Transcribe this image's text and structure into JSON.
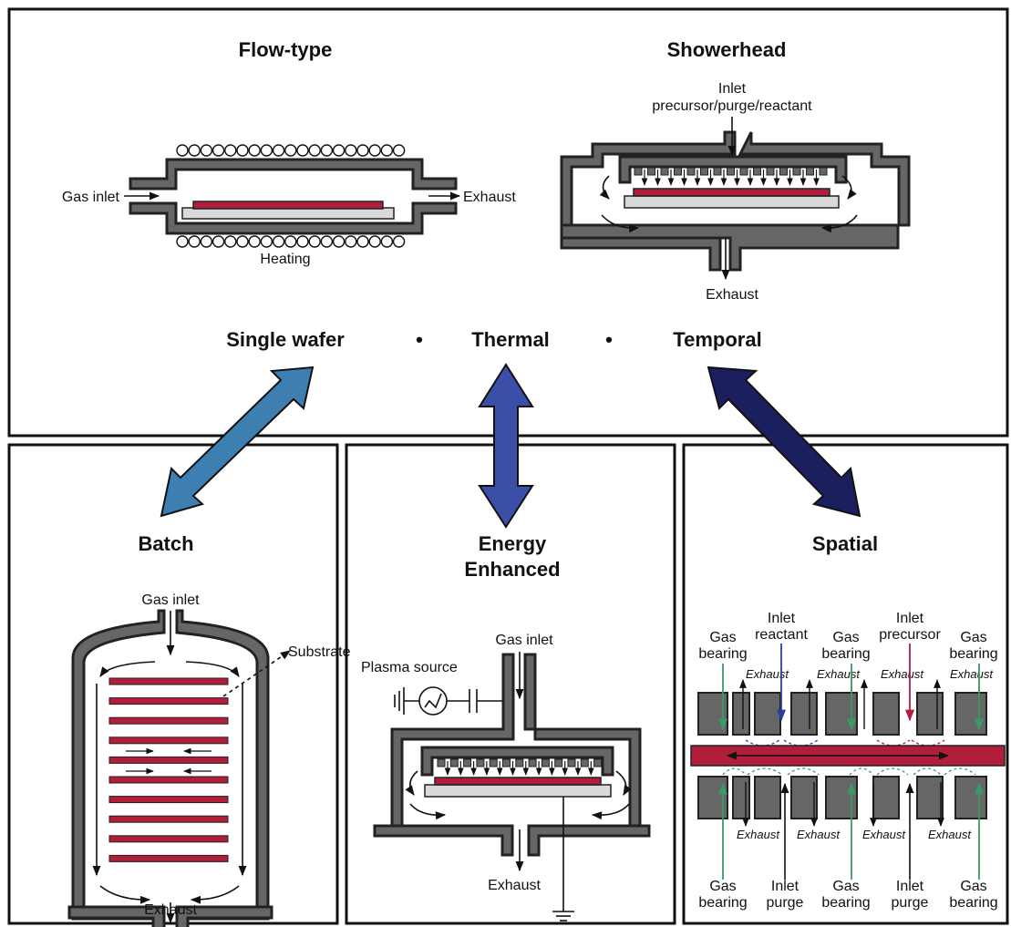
{
  "panels": {
    "flow_type": {
      "title": "Flow-type",
      "gas_inlet": "Gas inlet",
      "exhaust": "Exhaust",
      "heating": "Heating"
    },
    "showerhead": {
      "title": "Showerhead",
      "inlet": "Inlet",
      "inlet_detail": "precursor/purge/reactant",
      "exhaust": "Exhaust"
    },
    "modes": {
      "single_wafer": "Single wafer",
      "dot1": "•",
      "thermal": "Thermal",
      "dot2": "•",
      "temporal": "Temporal"
    },
    "batch": {
      "title": "Batch",
      "gas_inlet": "Gas inlet",
      "substrate": "Substrate",
      "exhaust": "Exhaust"
    },
    "energy": {
      "title_line1": "Energy",
      "title_line2": "Enhanced",
      "gas_inlet": "Gas inlet",
      "plasma_source": "Plasma source",
      "exhaust": "Exhaust"
    },
    "spatial": {
      "title": "Spatial",
      "top": {
        "gas_bearing_1": [
          "Gas",
          "bearing"
        ],
        "inlet_reactant": [
          "Inlet",
          "reactant"
        ],
        "gas_bearing_2": [
          "Gas",
          "bearing"
        ],
        "inlet_precursor": [
          "Inlet",
          "precursor"
        ],
        "gas_bearing_3": [
          "Gas",
          "bearing"
        ],
        "exhaust": "Exhaust"
      },
      "bottom": {
        "gas_bearing_1": [
          "Gas",
          "bearing"
        ],
        "inlet_purge_1": [
          "Inlet",
          "purge"
        ],
        "gas_bearing_2": [
          "Gas",
          "bearing"
        ],
        "inlet_purge_2": [
          "Inlet",
          "purge"
        ],
        "gas_bearing_3": [
          "Gas",
          "bearing"
        ],
        "exhaust": "Exhaust"
      }
    }
  },
  "colors": {
    "wafer": "#b01e3c",
    "wall": "#666666",
    "arrow_single_wafer": "#3d7fb0",
    "arrow_thermal": "#3b4ea8",
    "arrow_temporal": "#1c1f5e",
    "reactant": "#2b3f9a",
    "precursor": "#b01e3c",
    "bearing": "#3a9a64"
  }
}
